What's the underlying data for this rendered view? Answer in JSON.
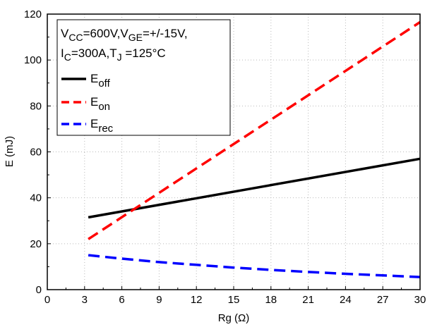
{
  "chart_data": {
    "type": "line",
    "xlabel": "Rg (Ω)",
    "ylabel": "E (mJ)",
    "xlim": [
      0,
      30
    ],
    "ylim": [
      0,
      120
    ],
    "xticks": [
      "0",
      "3",
      "6",
      "9",
      "12",
      "15",
      "18",
      "21",
      "24",
      "27",
      "30"
    ],
    "yticks": [
      "0",
      "20",
      "40",
      "60",
      "80",
      "100",
      "120"
    ],
    "grid": true,
    "legend_position": "top-left",
    "conditions": {
      "line1": {
        "v": "V",
        "cc": "CC",
        "eq1": "=600V,",
        "v2": "V",
        "ge": "GE",
        "eq2": "=+/-15V,"
      },
      "line2": {
        "i": "I",
        "c": "C",
        "eq1": "=300A,",
        "t": "T",
        "j": "J",
        "eq2": " =125°C"
      }
    },
    "series": [
      {
        "key": "eoff",
        "label_main": "E",
        "label_sub": "off",
        "color": "#000000",
        "style": "solid",
        "x": [
          3.3,
          30
        ],
        "y": [
          31.5,
          57.0
        ]
      },
      {
        "key": "eon",
        "label_main": "E",
        "label_sub": "on",
        "color": "#ff0000",
        "style": "dash",
        "x": [
          3.3,
          30
        ],
        "y": [
          22.0,
          116.5
        ]
      },
      {
        "key": "erec",
        "label_main": "E",
        "label_sub": "rec",
        "color": "#0000ff",
        "style": "dash",
        "x": [
          3.3,
          6,
          9,
          12,
          15,
          18,
          21,
          24,
          27,
          30
        ],
        "y": [
          15.0,
          13.5,
          12.0,
          10.8,
          9.6,
          8.6,
          7.7,
          6.9,
          6.2,
          5.5
        ]
      }
    ]
  }
}
